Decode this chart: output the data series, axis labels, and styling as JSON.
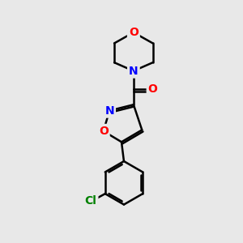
{
  "background_color": "#e8e8e8",
  "bond_color": "#000000",
  "bond_width": 1.8,
  "atom_colors": {
    "O": "#ff0000",
    "N": "#0000ff",
    "Cl": "#008000",
    "C": "#000000"
  },
  "font_size": 10,
  "figsize": [
    3.0,
    3.0
  ],
  "dpi": 100
}
